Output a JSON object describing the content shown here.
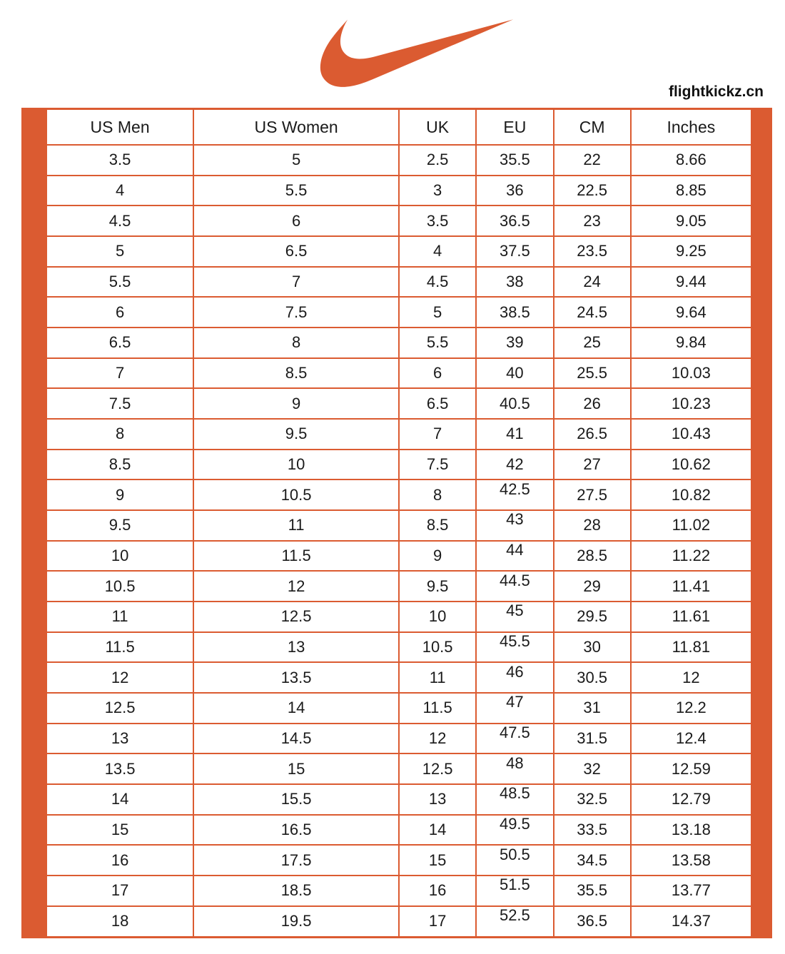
{
  "header": {
    "logo_icon": "nike-swoosh-icon",
    "watermark": "flightkickz.cn"
  },
  "colors": {
    "accent": "#DB5B31",
    "text": "#1A1A1A",
    "background": "#FFFFFF"
  },
  "chart_data": {
    "type": "table",
    "columns": [
      "US Men",
      "US Women",
      "UK",
      "EU",
      "CM",
      "Inches"
    ],
    "rows": [
      [
        "3.5",
        "5",
        "2.5",
        "35.5",
        "22",
        "8.66"
      ],
      [
        "4",
        "5.5",
        "3",
        "36",
        "22.5",
        "8.85"
      ],
      [
        "4.5",
        "6",
        "3.5",
        "36.5",
        "23",
        "9.05"
      ],
      [
        "5",
        "6.5",
        "4",
        "37.5",
        "23.5",
        "9.25"
      ],
      [
        "5.5",
        "7",
        "4.5",
        "38",
        "24",
        "9.44"
      ],
      [
        "6",
        "7.5",
        "5",
        "38.5",
        "24.5",
        "9.64"
      ],
      [
        "6.5",
        "8",
        "5.5",
        "39",
        "25",
        "9.84"
      ],
      [
        "7",
        "8.5",
        "6",
        "40",
        "25.5",
        "10.03"
      ],
      [
        "7.5",
        "9",
        "6.5",
        "40.5",
        "26",
        "10.23"
      ],
      [
        "8",
        "9.5",
        "7",
        "41",
        "26.5",
        "10.43"
      ],
      [
        "8.5",
        "10",
        "7.5",
        "42",
        "27",
        "10.62"
      ],
      [
        "9",
        "10.5",
        "8",
        "42.5",
        "27.5",
        "10.82"
      ],
      [
        "9.5",
        "11",
        "8.5",
        "43",
        "28",
        "11.02"
      ],
      [
        "10",
        "11.5",
        "9",
        "44",
        "28.5",
        "11.22"
      ],
      [
        "10.5",
        "12",
        "9.5",
        "44.5",
        "29",
        "11.41"
      ],
      [
        "11",
        "12.5",
        "10",
        "45",
        "29.5",
        "11.61"
      ],
      [
        "11.5",
        "13",
        "10.5",
        "45.5",
        "30",
        "11.81"
      ],
      [
        "12",
        "13.5",
        "11",
        "46",
        "30.5",
        "12"
      ],
      [
        "12.5",
        "14",
        "11.5",
        "47",
        "31",
        "12.2"
      ],
      [
        "13",
        "14.5",
        "12",
        "47.5",
        "31.5",
        "12.4"
      ],
      [
        "13.5",
        "15",
        "12.5",
        "48",
        "32",
        "12.59"
      ],
      [
        "14",
        "15.5",
        "13",
        "48.5",
        "32.5",
        "12.79"
      ],
      [
        "15",
        "16.5",
        "14",
        "49.5",
        "33.5",
        "13.18"
      ],
      [
        "16",
        "17.5",
        "15",
        "50.5",
        "34.5",
        "13.58"
      ],
      [
        "17",
        "18.5",
        "16",
        "51.5",
        "35.5",
        "13.77"
      ],
      [
        "18",
        "19.5",
        "17",
        "52.5",
        "36.5",
        "14.37"
      ]
    ],
    "raised_eu_note": "EU values from 42.5 onward render high in their cells",
    "grid": true
  }
}
